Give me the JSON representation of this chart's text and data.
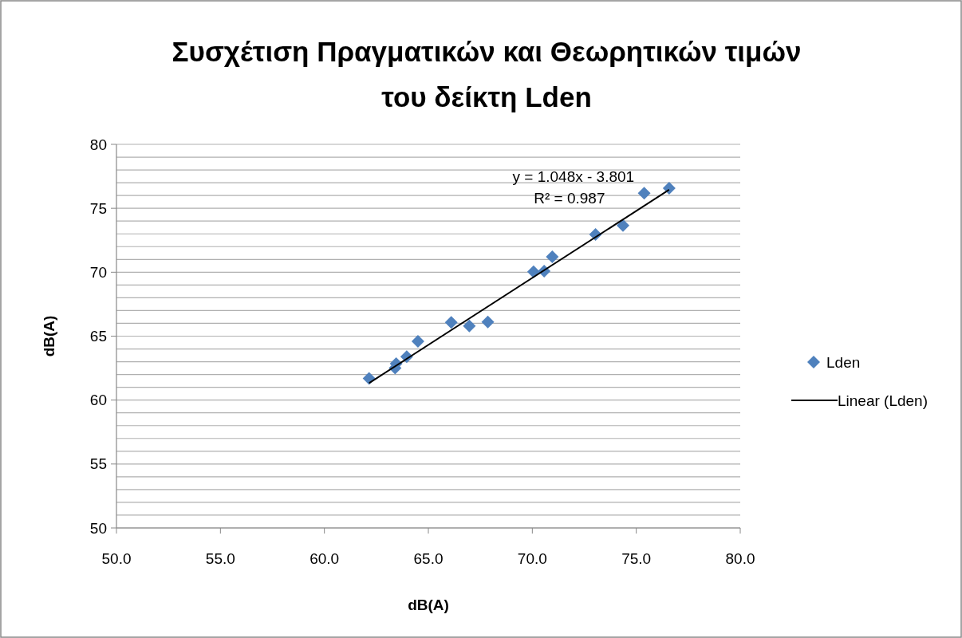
{
  "chart_data": {
    "type": "scatter",
    "title": "Συσχέτιση Πραγματικών και Θεωρητικών τιμών του δείκτη Lden",
    "xlabel": "dB(A)",
    "ylabel": "dB(A)",
    "xlim": [
      50,
      80
    ],
    "xticks": [
      {
        "value": 50,
        "label": "50.0"
      },
      {
        "value": 55,
        "label": "55.0"
      },
      {
        "value": 60,
        "label": "60.0"
      },
      {
        "value": 65,
        "label": "65.0"
      },
      {
        "value": 70,
        "label": "70.0"
      },
      {
        "value": 75,
        "label": "75.0"
      },
      {
        "value": 80,
        "label": "80.0"
      }
    ],
    "ylim": [
      50,
      80
    ],
    "yticks": [
      50,
      {
        "value": 51,
        "label": null
      },
      {
        "value": 52,
        "label": null
      },
      {
        "value": 53,
        "label": null
      },
      {
        "value": 54,
        "label": null
      },
      55,
      {
        "value": 56,
        "label": null
      },
      {
        "value": 57,
        "label": null
      },
      {
        "value": 58,
        "label": null
      },
      {
        "value": 59,
        "label": null
      },
      60,
      {
        "value": 61,
        "label": null
      },
      {
        "value": 62,
        "label": null
      },
      {
        "value": 63,
        "label": null
      },
      {
        "value": 64,
        "label": null
      },
      65,
      {
        "value": 66,
        "label": null
      },
      {
        "value": 67,
        "label": null
      },
      {
        "value": 68,
        "label": null
      },
      {
        "value": 69,
        "label": null
      },
      70,
      {
        "value": 71,
        "label": null
      },
      {
        "value": 72,
        "label": null
      },
      {
        "value": 73,
        "label": null
      },
      {
        "value": 74,
        "label": null
      },
      75,
      {
        "value": 76,
        "label": null
      },
      {
        "value": 77,
        "label": null
      },
      {
        "value": 78,
        "label": null
      },
      {
        "value": 79,
        "label": null
      },
      80
    ],
    "grid": "y",
    "legend": "right",
    "marker": "diamond",
    "series": [
      {
        "name": "Lden",
        "color": "#4f81bd",
        "x": [
          62.15,
          63.4,
          63.45,
          63.96,
          64.5,
          66.1,
          66.97,
          67.86,
          70.06,
          70.57,
          70.96,
          73.04,
          74.36,
          75.38,
          76.58
        ],
        "values": [
          61.7,
          62.5,
          62.85,
          63.4,
          64.6,
          66.07,
          65.8,
          66.1,
          70.04,
          70.08,
          71.2,
          72.95,
          73.66,
          76.18,
          76.57
        ]
      },
      {
        "name": "Linear (Lden)",
        "type": "line",
        "color": "#000000",
        "marker": "none",
        "line_style": "solid",
        "x": [
          62.15,
          76.58
        ],
        "values": [
          61.33,
          76.45
        ]
      }
    ],
    "annotations": [
      "y = 1.048x - 3.801",
      "R² = 0.987"
    ]
  }
}
